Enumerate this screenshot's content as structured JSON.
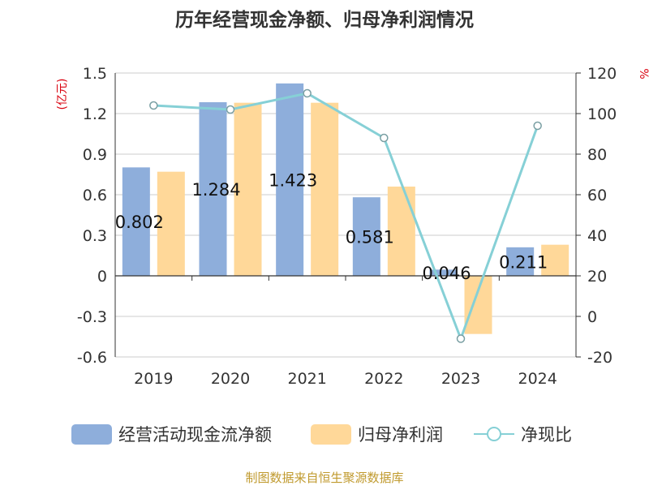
{
  "title": "历年经营现金净额、归母净利润情况",
  "left_unit": "(亿元)",
  "right_unit": "%",
  "footer": "制图数据来自恒生聚源数据库",
  "colors": {
    "bar1": "#8EAEDB",
    "bar2": "#FFD899",
    "line": "#86D0D6",
    "unit": "#D9000E",
    "footer": "#C09A2E",
    "axis_text": "#333333",
    "grid": "#CCCCCC"
  },
  "chart_data": {
    "type": "bar",
    "categories": [
      "2019",
      "2020",
      "2021",
      "2022",
      "2023",
      "2024"
    ],
    "series": [
      {
        "name": "经营活动现金流净额",
        "type": "bar",
        "axis": "left",
        "values": [
          0.802,
          1.284,
          1.423,
          0.581,
          0.046,
          0.211
        ]
      },
      {
        "name": "归母净利润",
        "type": "bar",
        "axis": "left",
        "values": [
          0.77,
          1.28,
          1.28,
          0.66,
          -0.43,
          0.23
        ]
      },
      {
        "name": "净现比",
        "type": "line",
        "axis": "right",
        "values": [
          104,
          102,
          110,
          88,
          -11,
          94
        ]
      }
    ],
    "data_labels": [
      "0.802",
      "1.284",
      "1.423",
      "0.581",
      "0.046",
      "0.211"
    ],
    "left_axis": {
      "ylim": [
        -0.6,
        1.5
      ],
      "ticks": [
        "1.5",
        "1.2",
        "0.9",
        "0.6",
        "0.3",
        "0",
        "-0.3",
        "-0.6"
      ]
    },
    "right_axis": {
      "ylim": [
        -20,
        120
      ],
      "ticks": [
        "120",
        "100",
        "80",
        "60",
        "40",
        "20",
        "0",
        "-20"
      ]
    },
    "grid": true,
    "legend_position": "bottom"
  }
}
